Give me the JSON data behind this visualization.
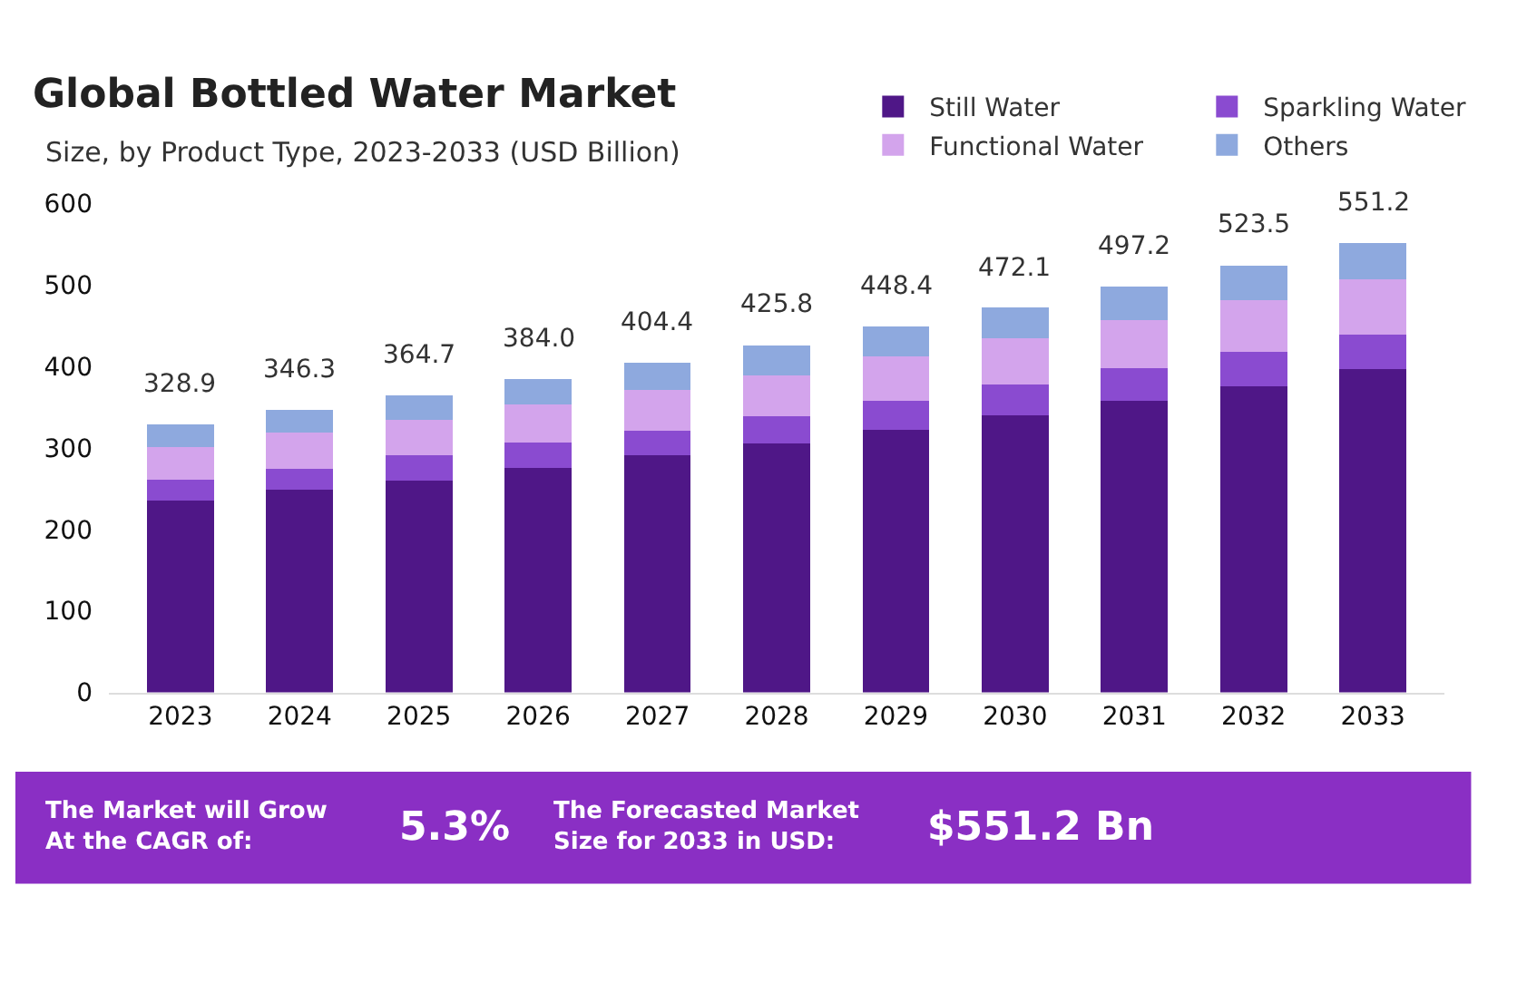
{
  "chart_data": {
    "type": "bar",
    "stacked": true,
    "title": "Global Bottled Water Market",
    "subtitle": "Size, by Product Type, 2023-2033 (USD Billion)",
    "categories": [
      "2023",
      "2024",
      "2025",
      "2026",
      "2027",
      "2028",
      "2029",
      "2030",
      "2031",
      "2032",
      "2033"
    ],
    "series": [
      {
        "name": "Still Water",
        "color": "#4f1787",
        "values": [
          234.9,
          248.3,
          259.7,
          275,
          290.4,
          305.8,
          322.4,
          340.1,
          357.2,
          375.5,
          396.2
        ]
      },
      {
        "name": "Sparkling Water",
        "color": "#8a4bd0",
        "values": [
          26,
          26,
          31,
          31,
          31,
          33,
          35,
          37,
          40,
          42,
          43
        ]
      },
      {
        "name": "Functional Water",
        "color": "#d3a4ec",
        "values": [
          40,
          44,
          44,
          47,
          50,
          50,
          55,
          57,
          59,
          63,
          67
        ]
      },
      {
        "name": "Others",
        "color": "#8ea9de",
        "values": [
          28,
          28,
          30,
          31,
          33,
          37,
          36,
          38,
          41,
          43,
          45
        ]
      }
    ],
    "totals": [
      "328.9",
      "346.3",
      "364.7",
      "384.0",
      "404.4",
      "425.8",
      "448.4",
      "472.1",
      "497.2",
      "523.5",
      "551.2"
    ],
    "ylim": [
      0,
      600
    ],
    "yticks": [
      0,
      100,
      200,
      300,
      400,
      500,
      600
    ],
    "legend": "top right",
    "annotations": [
      "The Market will Grow\nAt the CAGR of:",
      "5.3%",
      "The Forecasted Market\nSize for 2033 in USD:",
      "$551.2 Bn"
    ]
  }
}
